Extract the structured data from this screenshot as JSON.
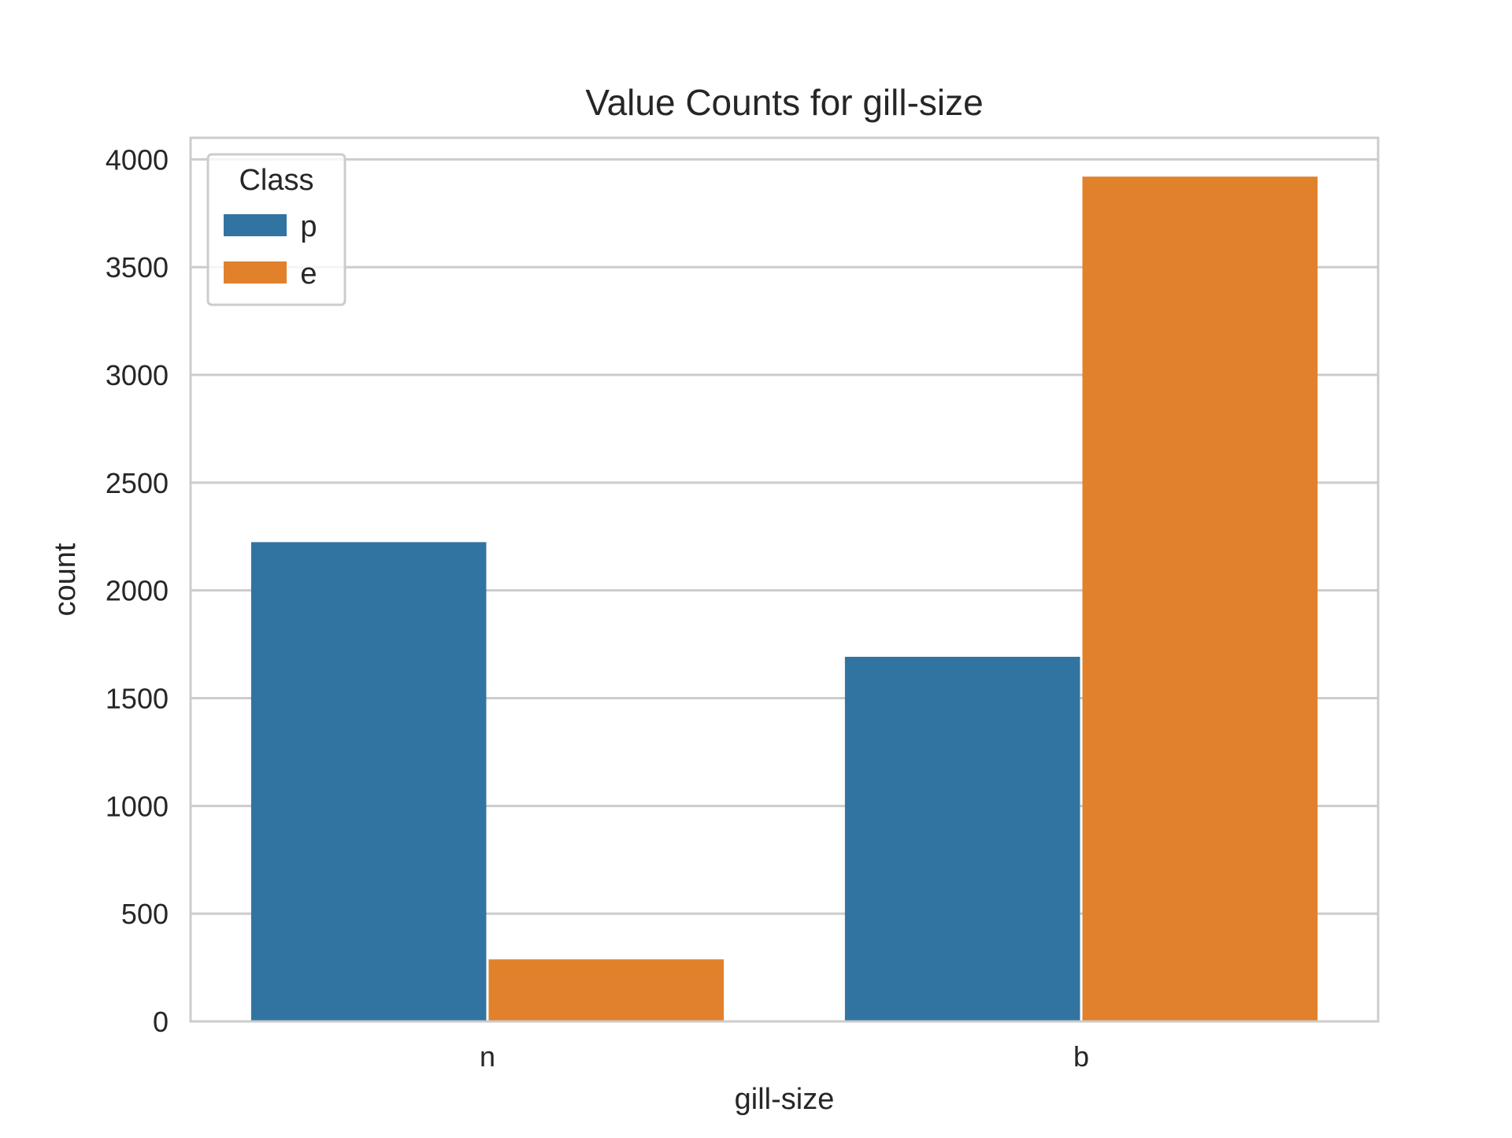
{
  "chart_data": {
    "type": "bar",
    "title": "Value Counts for gill-size",
    "xlabel": "gill-size",
    "ylabel": "count",
    "categories": [
      "n",
      "b"
    ],
    "series": [
      {
        "name": "p",
        "values": [
          2224,
          1692
        ]
      },
      {
        "name": "e",
        "values": [
          288,
          3920
        ]
      }
    ],
    "ylim": [
      0,
      4100
    ],
    "yticks": [
      0,
      500,
      1000,
      1500,
      2000,
      2500,
      3000,
      3500,
      4000
    ],
    "ytick_labels": [
      "0",
      "500",
      "1000",
      "1500",
      "2000",
      "2500",
      "3000",
      "3500",
      "4000"
    ],
    "grid": true,
    "legend": {
      "title": "Class",
      "placement": "top-left"
    },
    "colors": {
      "p": "#3274a1",
      "e": "#e1812c",
      "grid": "#cccccc",
      "axes_edge": "#cccccc",
      "text": "#262626"
    }
  }
}
